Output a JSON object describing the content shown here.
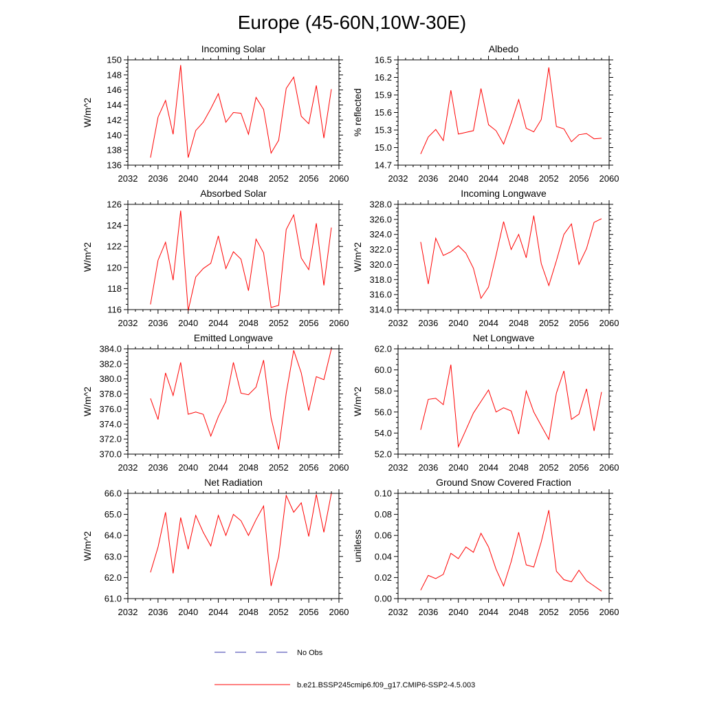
{
  "title": "Europe (45-60N,10W-30E)",
  "colors": {
    "model": "#ff0000",
    "obs": "#3333aa",
    "axis": "#000000"
  },
  "legend": {
    "obs_label": "No Obs",
    "model_label": "b.e21.BSSP245cmip6.f09_g17.CMIP6-SSP2-4.5.003"
  },
  "chart_data": [
    {
      "type": "line",
      "title": "Incoming Solar",
      "ylabel": "W/m^2",
      "xlim": [
        2032,
        2060
      ],
      "ylim": [
        136,
        150
      ],
      "x_ticks": [
        2032,
        2036,
        2040,
        2044,
        2048,
        2052,
        2056,
        2060
      ],
      "y_ticks": [
        136,
        138,
        140,
        142,
        144,
        146,
        148,
        150
      ],
      "y_decimals": 0,
      "grid": false,
      "series": [
        {
          "x": [
            2035,
            2036,
            2037,
            2038,
            2039,
            2040,
            2041,
            2042,
            2043,
            2044,
            2045,
            2046,
            2047,
            2048,
            2049,
            2050,
            2051,
            2052,
            2053,
            2054,
            2055,
            2056,
            2057,
            2058,
            2059
          ],
          "y": [
            137.0,
            142.4,
            144.6,
            140.1,
            149.3,
            137.0,
            140.6,
            141.7,
            143.5,
            145.5,
            141.7,
            143.0,
            142.9,
            140.1,
            145.0,
            143.4,
            137.6,
            139.3,
            146.2,
            147.7,
            142.5,
            141.5,
            146.6,
            139.6,
            146.1
          ]
        }
      ]
    },
    {
      "type": "line",
      "title": "Albedo",
      "ylabel": "% reflected",
      "xlim": [
        2032,
        2060
      ],
      "ylim": [
        14.7,
        16.5
      ],
      "x_ticks": [
        2032,
        2036,
        2040,
        2044,
        2048,
        2052,
        2056,
        2060
      ],
      "y_ticks": [
        14.7,
        15.0,
        15.3,
        15.6,
        15.9,
        16.2,
        16.5
      ],
      "y_decimals": 1,
      "grid": false,
      "series": [
        {
          "x": [
            2035,
            2036,
            2037,
            2038,
            2039,
            2040,
            2041,
            2042,
            2043,
            2044,
            2045,
            2046,
            2047,
            2048,
            2049,
            2050,
            2051,
            2052,
            2053,
            2054,
            2055,
            2056,
            2057,
            2058,
            2059
          ],
          "y": [
            14.89,
            15.18,
            15.31,
            15.12,
            15.98,
            15.23,
            15.26,
            15.29,
            16.01,
            15.39,
            15.29,
            15.06,
            15.42,
            15.82,
            15.33,
            15.27,
            15.48,
            16.37,
            15.36,
            15.32,
            15.1,
            15.22,
            15.24,
            15.15,
            15.16
          ]
        }
      ]
    },
    {
      "type": "line",
      "title": "Absorbed Solar",
      "ylabel": "W/m^2",
      "xlim": [
        2032,
        2060
      ],
      "ylim": [
        116,
        126
      ],
      "x_ticks": [
        2032,
        2036,
        2040,
        2044,
        2048,
        2052,
        2056,
        2060
      ],
      "y_ticks": [
        116,
        118,
        120,
        122,
        124,
        126
      ],
      "y_decimals": 0,
      "grid": false,
      "series": [
        {
          "x": [
            2035,
            2036,
            2037,
            2038,
            2039,
            2040,
            2041,
            2042,
            2043,
            2044,
            2045,
            2046,
            2047,
            2048,
            2049,
            2050,
            2051,
            2052,
            2053,
            2054,
            2055,
            2056,
            2057,
            2058,
            2059
          ],
          "y": [
            116.5,
            120.7,
            122.4,
            118.8,
            125.4,
            115.9,
            119.1,
            119.9,
            120.4,
            123.0,
            119.9,
            121.5,
            120.8,
            117.8,
            122.7,
            121.4,
            116.2,
            116.4,
            123.6,
            125.0,
            120.9,
            119.8,
            124.2,
            118.3,
            123.8
          ]
        }
      ]
    },
    {
      "type": "line",
      "title": "Incoming Longwave",
      "ylabel": "W/m^2",
      "xlim": [
        2032,
        2060
      ],
      "ylim": [
        314.0,
        328.0
      ],
      "x_ticks": [
        2032,
        2036,
        2040,
        2044,
        2048,
        2052,
        2056,
        2060
      ],
      "y_ticks": [
        314.0,
        316.0,
        318.0,
        320.0,
        322.0,
        324.0,
        326.0,
        328.0
      ],
      "y_decimals": 1,
      "grid": false,
      "series": [
        {
          "x": [
            2035,
            2036,
            2037,
            2038,
            2039,
            2040,
            2041,
            2042,
            2043,
            2044,
            2045,
            2046,
            2047,
            2048,
            2049,
            2050,
            2051,
            2052,
            2053,
            2054,
            2055,
            2056,
            2057,
            2058,
            2059
          ],
          "y": [
            323.0,
            317.4,
            323.5,
            321.2,
            321.7,
            322.5,
            321.5,
            319.5,
            315.5,
            317.0,
            321.2,
            325.7,
            322.0,
            324.0,
            320.9,
            326.5,
            320.1,
            317.2,
            320.5,
            324.0,
            325.4,
            320.0,
            322.1,
            325.6,
            326.1
          ]
        }
      ]
    },
    {
      "type": "line",
      "title": "Emitted Longwave",
      "ylabel": "W/m^2",
      "xlim": [
        2032,
        2060
      ],
      "ylim": [
        370.0,
        384.0
      ],
      "x_ticks": [
        2032,
        2036,
        2040,
        2044,
        2048,
        2052,
        2056,
        2060
      ],
      "y_ticks": [
        370.0,
        372.0,
        374.0,
        376.0,
        378.0,
        380.0,
        382.0,
        384.0
      ],
      "y_decimals": 1,
      "grid": false,
      "series": [
        {
          "x": [
            2035,
            2036,
            2037,
            2038,
            2039,
            2040,
            2041,
            2042,
            2043,
            2044,
            2045,
            2046,
            2047,
            2048,
            2049,
            2050,
            2051,
            2052,
            2053,
            2054,
            2055,
            2056,
            2057,
            2058,
            2059
          ],
          "y": [
            377.4,
            374.6,
            380.8,
            377.8,
            382.2,
            375.3,
            375.6,
            375.3,
            372.4,
            375.0,
            377.0,
            382.2,
            378.1,
            377.9,
            378.9,
            382.5,
            374.8,
            370.6,
            378.1,
            383.8,
            380.8,
            375.8,
            380.3,
            379.9,
            384.0
          ]
        }
      ]
    },
    {
      "type": "line",
      "title": "Net Longwave",
      "ylabel": "W/m^2",
      "xlim": [
        2032,
        2060
      ],
      "ylim": [
        52.0,
        62.0
      ],
      "x_ticks": [
        2032,
        2036,
        2040,
        2044,
        2048,
        2052,
        2056,
        2060
      ],
      "y_ticks": [
        52.0,
        54.0,
        56.0,
        58.0,
        60.0,
        62.0
      ],
      "y_decimals": 1,
      "grid": false,
      "series": [
        {
          "x": [
            2035,
            2036,
            2037,
            2038,
            2039,
            2040,
            2041,
            2042,
            2043,
            2044,
            2045,
            2046,
            2047,
            2048,
            2049,
            2050,
            2051,
            2052,
            2053,
            2054,
            2055,
            2056,
            2057,
            2058,
            2059
          ],
          "y": [
            54.3,
            57.2,
            57.3,
            56.7,
            60.5,
            52.7,
            54.3,
            55.9,
            57.0,
            58.1,
            56.0,
            56.4,
            56.1,
            53.9,
            58.0,
            56.0,
            54.7,
            53.4,
            57.8,
            59.9,
            55.3,
            55.8,
            58.2,
            54.2,
            57.9
          ]
        }
      ]
    },
    {
      "type": "line",
      "title": "Net Radiation",
      "ylabel": "W/m^2",
      "xlim": [
        2032,
        2060
      ],
      "ylim": [
        61.0,
        66.0
      ],
      "x_ticks": [
        2032,
        2036,
        2040,
        2044,
        2048,
        2052,
        2056,
        2060
      ],
      "y_ticks": [
        61.0,
        62.0,
        63.0,
        64.0,
        65.0,
        66.0
      ],
      "y_decimals": 1,
      "grid": false,
      "series": [
        {
          "x": [
            2035,
            2036,
            2037,
            2038,
            2039,
            2040,
            2041,
            2042,
            2043,
            2044,
            2045,
            2046,
            2047,
            2048,
            2049,
            2050,
            2051,
            2052,
            2053,
            2054,
            2055,
            2056,
            2057,
            2058,
            2059
          ],
          "y": [
            62.25,
            63.45,
            65.1,
            62.2,
            64.85,
            63.35,
            64.95,
            64.15,
            63.5,
            64.95,
            64.0,
            65.0,
            64.7,
            64.0,
            64.75,
            65.4,
            61.6,
            63.0,
            65.9,
            65.1,
            65.55,
            63.95,
            65.95,
            64.15,
            66.0
          ]
        }
      ]
    },
    {
      "type": "line",
      "title": "Ground Snow Covered Fraction",
      "ylabel": "unitless",
      "xlim": [
        2032,
        2060
      ],
      "ylim": [
        0.0,
        0.1
      ],
      "x_ticks": [
        2032,
        2036,
        2040,
        2044,
        2048,
        2052,
        2056,
        2060
      ],
      "y_ticks": [
        0.0,
        0.02,
        0.04,
        0.06,
        0.08,
        0.1
      ],
      "y_decimals": 2,
      "grid": false,
      "series": [
        {
          "x": [
            2035,
            2036,
            2037,
            2038,
            2039,
            2040,
            2041,
            2042,
            2043,
            2044,
            2045,
            2046,
            2047,
            2048,
            2049,
            2050,
            2051,
            2052,
            2053,
            2054,
            2055,
            2056,
            2057,
            2058,
            2059
          ],
          "y": [
            0.008,
            0.022,
            0.019,
            0.023,
            0.043,
            0.038,
            0.049,
            0.044,
            0.062,
            0.049,
            0.028,
            0.012,
            0.035,
            0.063,
            0.032,
            0.03,
            0.054,
            0.084,
            0.026,
            0.018,
            0.016,
            0.027,
            0.017,
            0.012,
            0.007
          ]
        }
      ]
    }
  ]
}
